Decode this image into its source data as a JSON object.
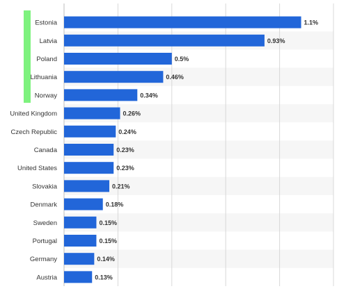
{
  "chart_data": {
    "type": "bar",
    "orientation": "horizontal",
    "categories": [
      "Estonia",
      "Latvia",
      "Poland",
      "Lithuania",
      "Norway",
      "United Kingdom",
      "Czech Republic",
      "Canada",
      "United States",
      "Slovakia",
      "Denmark",
      "Sweden",
      "Portugal",
      "Germany",
      "Austria"
    ],
    "values": [
      1.1,
      0.93,
      0.5,
      0.46,
      0.34,
      0.26,
      0.24,
      0.23,
      0.23,
      0.21,
      0.18,
      0.15,
      0.15,
      0.14,
      0.13
    ],
    "data_labels": [
      "1.1%",
      "0.93%",
      "0.5%",
      "0.46%",
      "0.34%",
      "0.26%",
      "0.24%",
      "0.23%",
      "0.23%",
      "0.21%",
      "0.18%",
      "0.15%",
      "0.15%",
      "0.14%",
      "0.13%"
    ],
    "highlighted_categories": [
      "Estonia",
      "Latvia",
      "Poland",
      "Lithuania",
      "Norway"
    ],
    "xlim": [
      0,
      1.25
    ],
    "grid": true,
    "colors": {
      "bar": "#2266d9",
      "highlight": "#7ef27e",
      "grid": "#d8d8d8",
      "band": "#f6f6f6",
      "label": "#333333",
      "value_label": "#333333"
    }
  }
}
